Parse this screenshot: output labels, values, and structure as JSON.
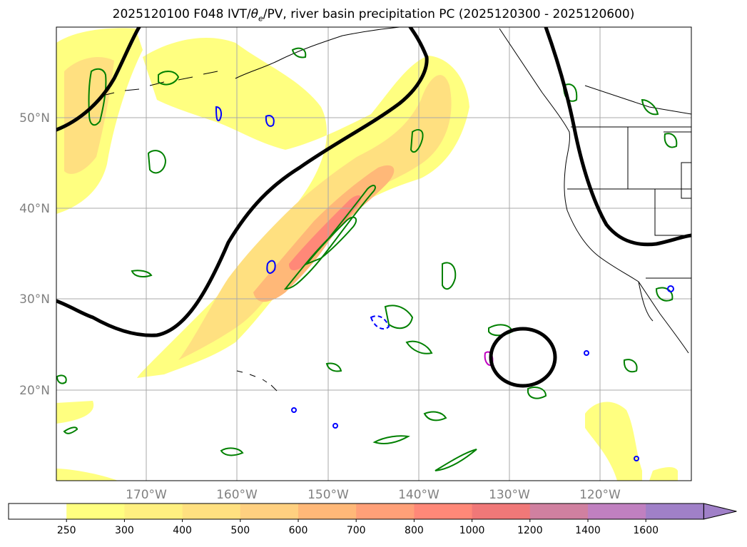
{
  "title": {
    "prefix": "2025120100 F048 IVT/",
    "theta": "θ",
    "sub": "e",
    "suffix": "/PV, river basin precipitation PC (2025120300 - 2025120600)"
  },
  "axes": {
    "lon_labels": [
      "170°W",
      "160°W",
      "150°W",
      "140°W",
      "130°W",
      "120°W"
    ],
    "lat_labels": [
      "50°N",
      "40°N",
      "30°N",
      "20°N"
    ]
  },
  "colorbar": {
    "ticks": [
      "250",
      "300",
      "400",
      "500",
      "600",
      "700",
      "800",
      "1000",
      "1200",
      "1400",
      "1600"
    ],
    "colors": [
      "#ffffff",
      "#ffff80",
      "#fff080",
      "#ffe080",
      "#ffd080",
      "#ffb878",
      "#ffa078",
      "#ff8878",
      "#f07878",
      "#d080a0",
      "#c080c0",
      "#a080c8"
    ]
  },
  "colors": {
    "ivt_low": "#ffff80",
    "ivt_mid": "#ffd080",
    "ivt_high": "#ff9070",
    "pv_contour": "#000000",
    "theta_green": "#008000",
    "blue": "#0000ff",
    "magenta": "#c000c0",
    "grid": "#a9a9a9"
  }
}
